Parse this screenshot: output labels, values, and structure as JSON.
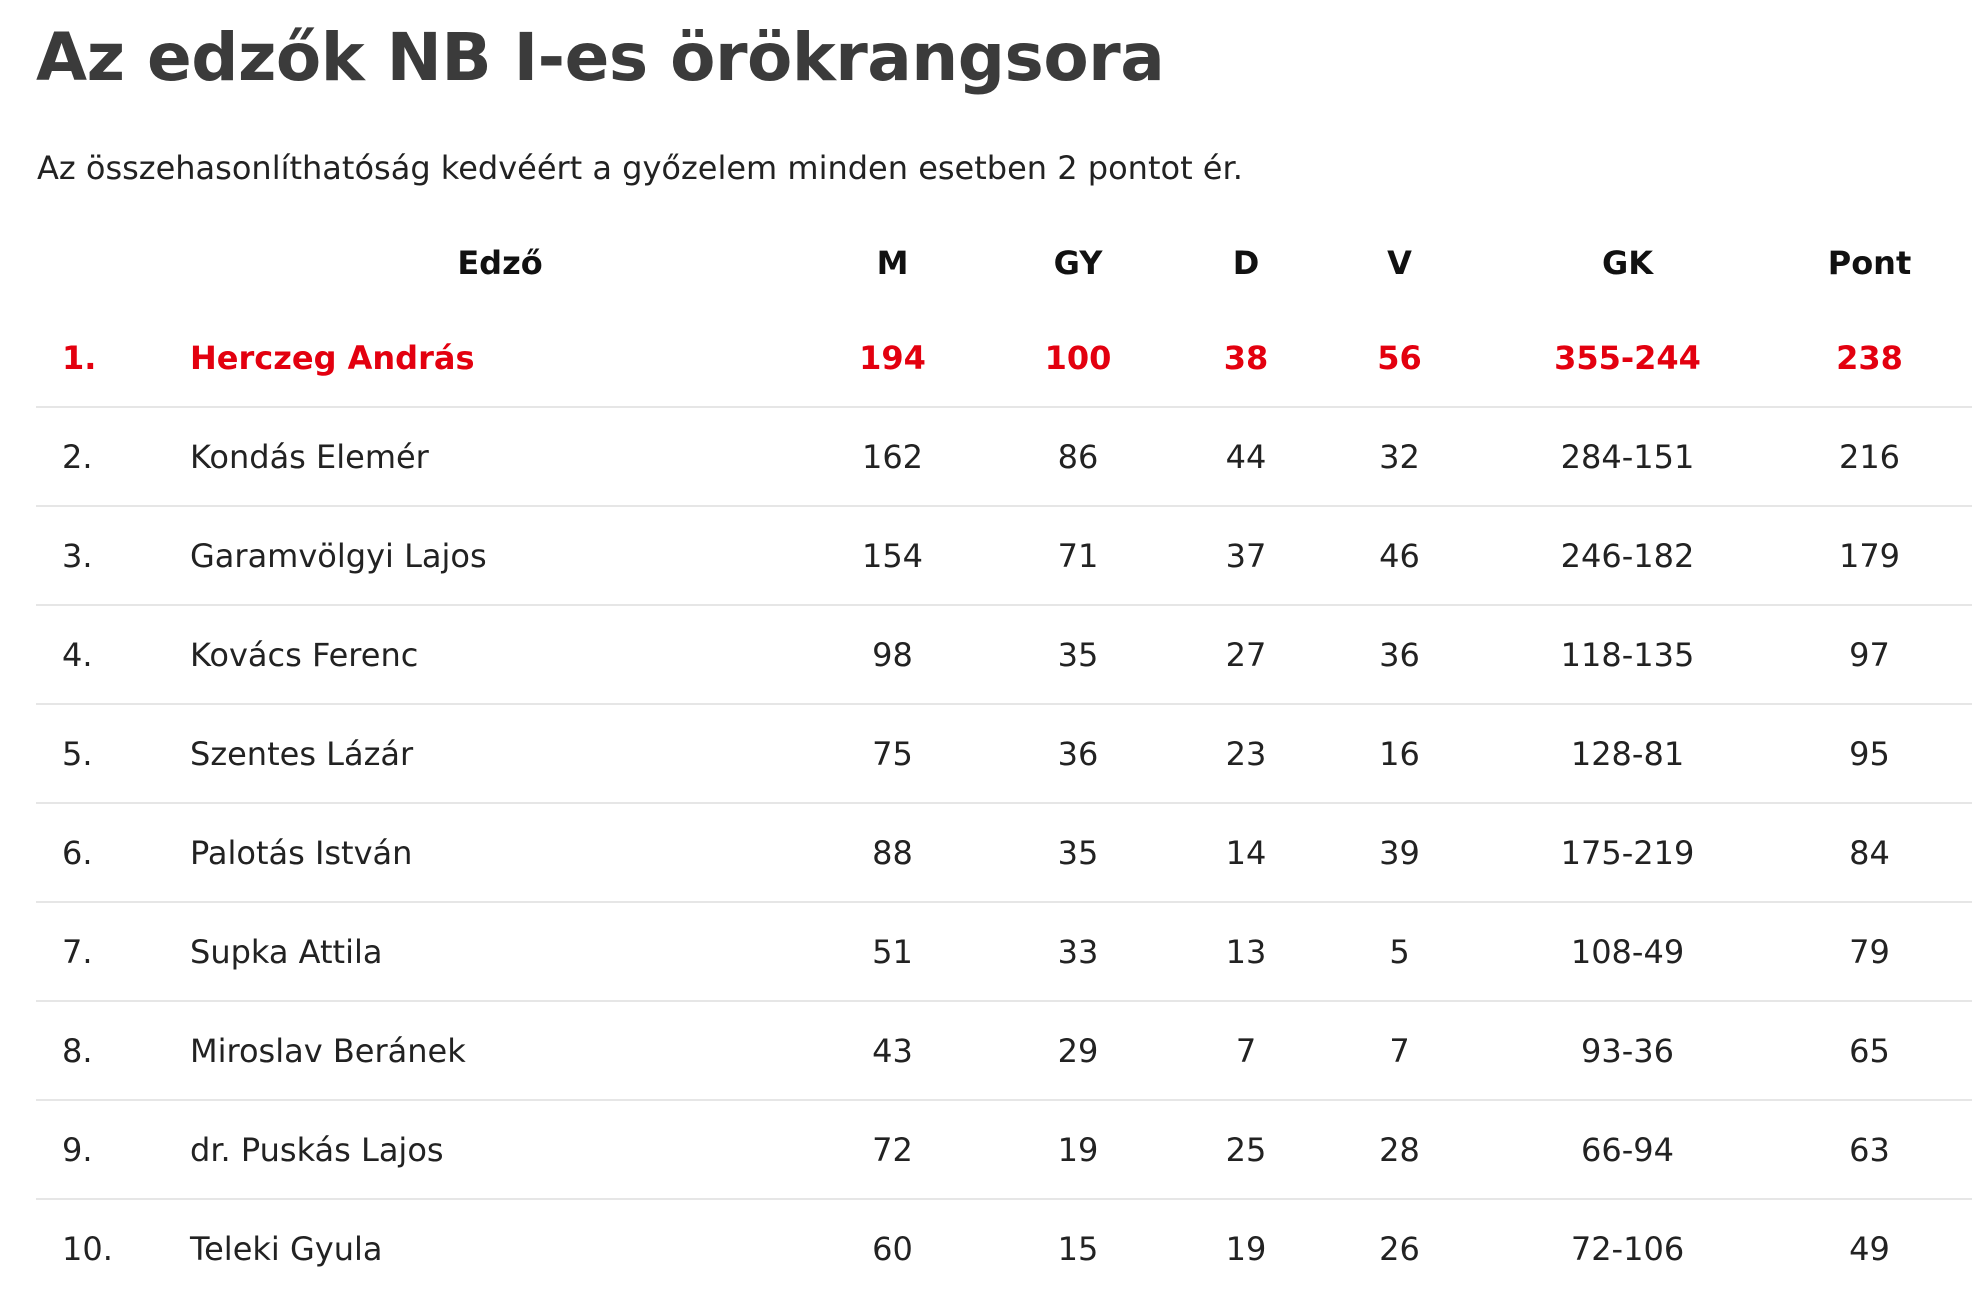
{
  "title": "Az edzők NB I-es örökrangsora",
  "intro": "Az összehasonlíthatóság kedvéért a győzelem minden esetben 2 pontot ér.",
  "colors": {
    "highlight": "#e3000f",
    "text": "#222222",
    "title": "#3b3b3b",
    "divider": "#e6e6e6"
  },
  "table": {
    "headers": {
      "rank": "",
      "name": "Edző",
      "m": "M",
      "gy": "GY",
      "d": "D",
      "v": "V",
      "gk": "GK",
      "pont": "Pont"
    },
    "rows": [
      {
        "rank": "1.",
        "name": "Herczeg András",
        "m": "194",
        "gy": "100",
        "d": "38",
        "v": "56",
        "gk": "355-244",
        "pont": "238",
        "highlighted": true
      },
      {
        "rank": "2.",
        "name": "Kondás Elemér",
        "m": "162",
        "gy": "86",
        "d": "44",
        "v": "32",
        "gk": "284-151",
        "pont": "216"
      },
      {
        "rank": "3.",
        "name": "Garamvölgyi Lajos",
        "m": "154",
        "gy": "71",
        "d": "37",
        "v": "46",
        "gk": "246-182",
        "pont": "179"
      },
      {
        "rank": "4.",
        "name": "Kovács Ferenc",
        "m": "98",
        "gy": "35",
        "d": "27",
        "v": "36",
        "gk": "118-135",
        "pont": "97"
      },
      {
        "rank": "5.",
        "name": "Szentes Lázár",
        "m": "75",
        "gy": "36",
        "d": "23",
        "v": "16",
        "gk": "128-81",
        "pont": "95"
      },
      {
        "rank": "6.",
        "name": "Palotás István",
        "m": "88",
        "gy": "35",
        "d": "14",
        "v": "39",
        "gk": "175-219",
        "pont": "84"
      },
      {
        "rank": "7.",
        "name": "Supka Attila",
        "m": "51",
        "gy": "33",
        "d": "13",
        "v": "5",
        "gk": "108-49",
        "pont": "79"
      },
      {
        "rank": "8.",
        "name": "Miroslav Beránek",
        "m": "43",
        "gy": "29",
        "d": "7",
        "v": "7",
        "gk": "93-36",
        "pont": "65"
      },
      {
        "rank": "9.",
        "name": "dr. Puskás Lajos",
        "m": "72",
        "gy": "19",
        "d": "25",
        "v": "28",
        "gk": "66-94",
        "pont": "63"
      },
      {
        "rank": "10.",
        "name": "Teleki Gyula",
        "m": "60",
        "gy": "15",
        "d": "19",
        "v": "26",
        "gk": "72-106",
        "pont": "49"
      }
    ]
  }
}
